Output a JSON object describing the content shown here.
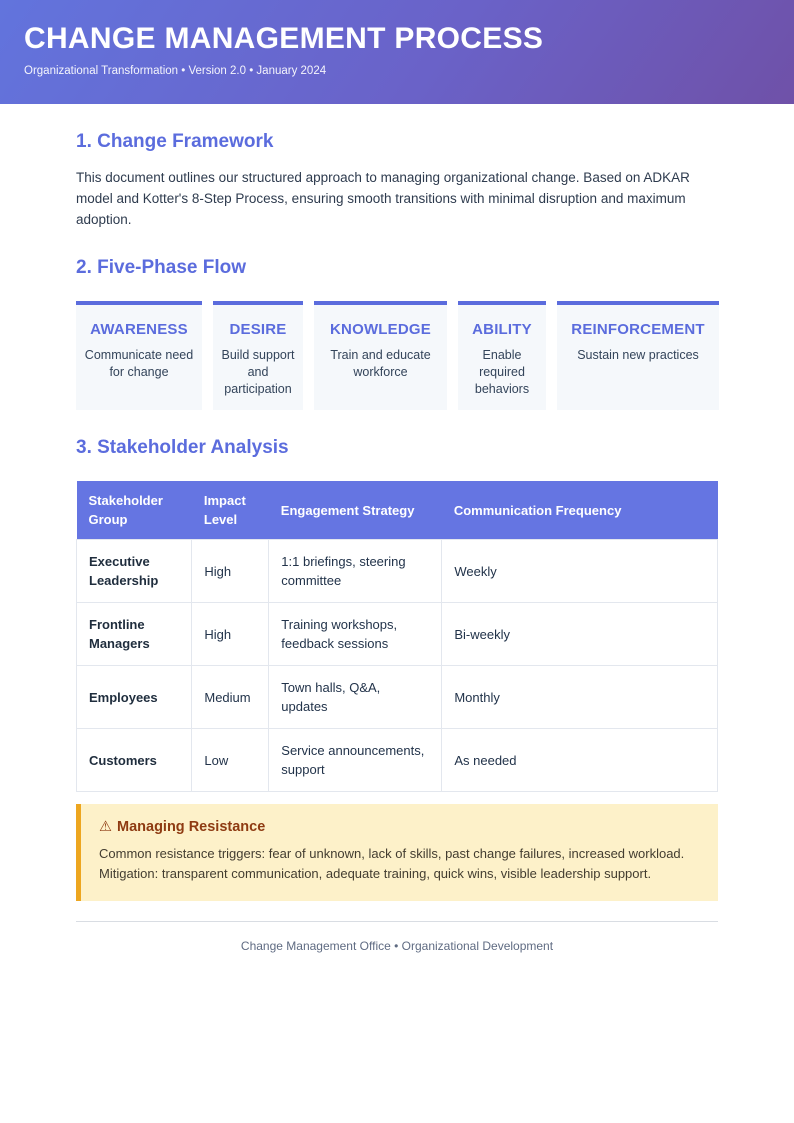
{
  "header": {
    "title": "CHANGE MANAGEMENT PROCESS",
    "subtitle": "Organizational Transformation • Version 2.0 • January 2024"
  },
  "sections": {
    "framework": {
      "heading": "1. Change Framework",
      "body": "This document outlines our structured approach to managing organizational change. Based on ADKAR model and Kotter's 8-Step Process, ensuring smooth transitions with minimal disruption and maximum adoption."
    },
    "phases": {
      "heading": "2. Five-Phase Flow",
      "items": [
        {
          "title": "AWARENESS",
          "description": "Communicate need for change"
        },
        {
          "title": "DESIRE",
          "description": "Build support and participation"
        },
        {
          "title": "KNOWLEDGE",
          "description": "Train and educate workforce"
        },
        {
          "title": "ABILITY",
          "description": "Enable required behaviors"
        },
        {
          "title": "REINFORCEMENT",
          "description": "Sustain new practices"
        }
      ]
    },
    "stakeholders": {
      "heading": "3. Stakeholder Analysis",
      "table": {
        "columns": [
          "Stakeholder Group",
          "Impact Level",
          "Engagement Strategy",
          "Communication Frequency"
        ],
        "rows": [
          {
            "group": "Executive Leadership",
            "impact": "High",
            "strategy": "1:1 briefings, steering committee",
            "frequency": "Weekly"
          },
          {
            "group": "Frontline Managers",
            "impact": "High",
            "strategy": "Training workshops, feedback sessions",
            "frequency": "Bi-weekly"
          },
          {
            "group": "Employees",
            "impact": "Medium",
            "strategy": "Town halls, Q&A, updates",
            "frequency": "Monthly"
          },
          {
            "group": "Customers",
            "impact": "Low",
            "strategy": "Service announcements, support",
            "frequency": "As needed"
          }
        ]
      }
    },
    "resistance": {
      "icon": "⚠",
      "heading": "Managing Resistance",
      "body": "Common resistance triggers: fear of unknown, lack of skills, past change failures, increased workload. Mitigation: transparent communication, adequate training, quick wins, visible leadership support."
    }
  },
  "footer": {
    "text": "Change Management Office • Organizational Development"
  },
  "colors": {
    "accent": "#5b6cdd",
    "header_gradient_start": "#6274dd",
    "header_gradient_end": "#6f51a8",
    "table_header_bg": "#6575e2",
    "phase_box_bg": "#f5f8fb",
    "warning_bg": "#fdf1c9",
    "warning_border": "#eda620",
    "warning_heading_color": "#8e3b12",
    "body_text": "#2e3b4e",
    "footer_text": "#5f6b82"
  }
}
